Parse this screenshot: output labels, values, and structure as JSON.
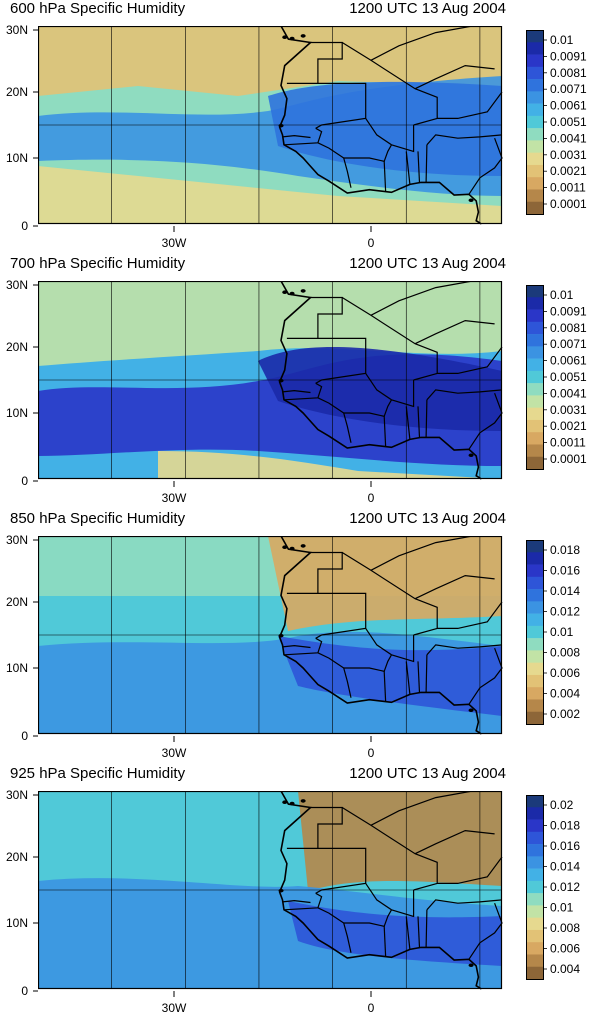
{
  "panels": [
    {
      "title": "600 hPa Specific Humidity",
      "time": "1200 UTC 13 Aug 2004",
      "cbar_labels": [
        "0.01",
        "0.0091",
        "0.0081",
        "0.0071",
        "0.0061",
        "0.0051",
        "0.0041",
        "0.0031",
        "0.0021",
        "0.0011",
        "0.0001"
      ],
      "cbar_colors": [
        "#1b3a7a",
        "#1b2aa8",
        "#2a36c8",
        "#2e55d8",
        "#2f73dd",
        "#3b93e2",
        "#42b1e6",
        "#50c9d8",
        "#8fdcc0",
        "#c2e3a6",
        "#e6d98f",
        "#e2c276",
        "#d8a862",
        "#b5874a",
        "#8d6638"
      ],
      "map": {
        "north": "dry",
        "sahel": "moist",
        "south": "dry"
      },
      "cbar_title": ""
    },
    {
      "title": "700 hPa Specific Humidity",
      "time": "1200 UTC 13 Aug 2004",
      "cbar_labels": [
        "0.01",
        "0.0091",
        "0.0081",
        "0.0071",
        "0.0061",
        "0.0051",
        "0.0041",
        "0.0031",
        "0.0021",
        "0.0011",
        "0.0001"
      ],
      "cbar_colors": [
        "#1b3a7a",
        "#1b2aa8",
        "#2a36c8",
        "#2e55d8",
        "#2f73dd",
        "#3b93e2",
        "#42b1e6",
        "#50c9d8",
        "#8fdcc0",
        "#c2e3a6",
        "#e6d98f",
        "#e2c276",
        "#d8a862",
        "#b5874a",
        "#8d6638"
      ],
      "map": {
        "north": "moderate",
        "sahel": "very-moist",
        "south": "moist"
      }
    },
    {
      "title": "850 hPa Specific Humidity",
      "time": "1200 UTC 13 Aug 2004",
      "cbar_labels": [
        "0.018",
        "0.016",
        "0.014",
        "0.012",
        "0.01",
        "0.008",
        "0.006",
        "0.004",
        "0.002"
      ],
      "cbar_colors": [
        "#1b3a7a",
        "#1b2aa8",
        "#2a36c8",
        "#2e55d8",
        "#2f73dd",
        "#3b93e2",
        "#42b1e6",
        "#50c9d8",
        "#8fdcc0",
        "#c2e3a6",
        "#e6d98f",
        "#e2c276",
        "#d8a862",
        "#b5874a",
        "#8d6638"
      ],
      "map": {
        "north": "dry-land",
        "sahel": "moist",
        "south": "moist"
      }
    },
    {
      "title": "925 hPa Specific Humidity",
      "time": "1200 UTC 13 Aug 2004",
      "cbar_labels": [
        "0.02",
        "0.018",
        "0.016",
        "0.014",
        "0.012",
        "0.01",
        "0.008",
        "0.006",
        "0.004"
      ],
      "cbar_colors": [
        "#1b3a7a",
        "#1b2aa8",
        "#2a36c8",
        "#2e55d8",
        "#2f73dd",
        "#3b93e2",
        "#42b1e6",
        "#50c9d8",
        "#8fdcc0",
        "#c2e3a6",
        "#e6d98f",
        "#e2c276",
        "#d8a862",
        "#b5874a",
        "#8d6638"
      ],
      "map": {
        "north": "very-dry-land",
        "sahel": "moist",
        "south": "moist"
      }
    }
  ],
  "axes": {
    "lat_labels": [
      "30N",
      "20N",
      "10N",
      "0"
    ],
    "lon_labels": [
      "30W",
      "0"
    ]
  }
}
